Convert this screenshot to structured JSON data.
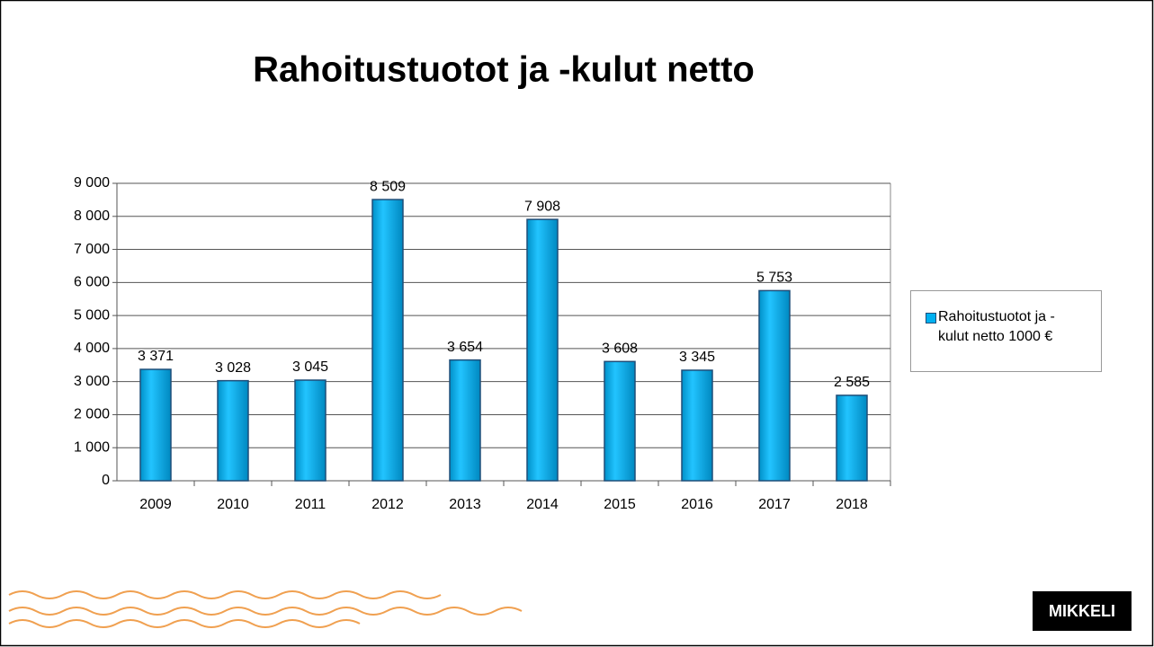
{
  "chart_data": {
    "type": "bar",
    "title": "Rahoitustuotot ja -kulut netto",
    "categories": [
      "2009",
      "2010",
      "2011",
      "2012",
      "2013",
      "2014",
      "2015",
      "2016",
      "2017",
      "2018"
    ],
    "series": [
      {
        "name": "Rahoitustuotot ja -kulut netto 1000 €",
        "color": "#00b0f0",
        "values": [
          3371,
          3028,
          3045,
          8509,
          3654,
          7908,
          3608,
          3345,
          5753,
          2585
        ],
        "value_labels": [
          "3 371",
          "3 028",
          "3 045",
          "8 509",
          "3 654",
          "7 908",
          "3 608",
          "3 345",
          "5 753",
          "2 585"
        ]
      }
    ],
    "ylim": [
      0,
      9000
    ],
    "yticks": [
      0,
      {
        "value": 1000,
        "label": "1 000"
      },
      {
        "value": 2000,
        "label": "2 000"
      },
      {
        "value": 3000,
        "label": "3 000"
      },
      {
        "value": 4000,
        "label": "4 000"
      },
      {
        "value": 5000,
        "label": "5 000"
      },
      {
        "value": 6000,
        "label": "6 000"
      },
      {
        "value": 7000,
        "label": "7 000"
      },
      {
        "value": 8000,
        "label": "8 000"
      },
      {
        "value": 9000,
        "label": "9 000"
      }
    ],
    "grid": true,
    "legend": "right"
  },
  "logo": "MIKKELI"
}
